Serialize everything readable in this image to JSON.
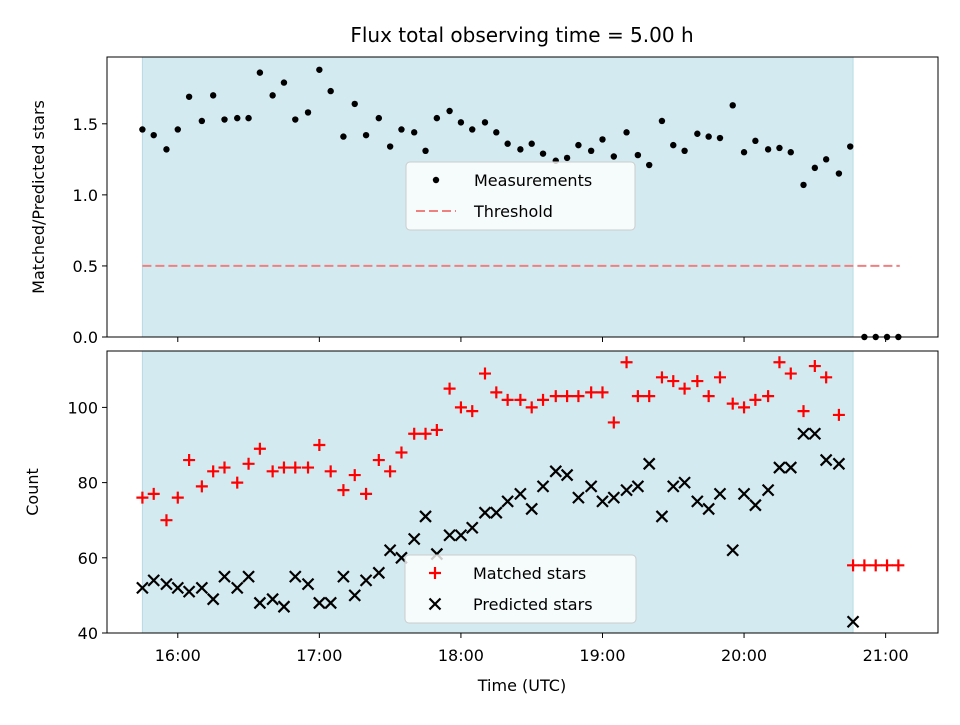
{
  "chart_data": [
    {
      "type": "scatter",
      "title": "Flux total observing time = 5.00 h",
      "ylabel": "Matched/Predicted stars",
      "xlabel": "",
      "x_unit": "hour_utc",
      "xlim": [
        15.5,
        21.37
      ],
      "ylim": [
        0,
        1.97
      ],
      "yticks": [
        0.0,
        0.5,
        1.0,
        1.5
      ],
      "ytick_labels": [
        "0.0",
        "0.5",
        "1.0",
        "1.5"
      ],
      "shaded_interval": [
        15.75,
        20.77
      ],
      "shade_color": "#d3eaf0",
      "legend_position": "center",
      "series": [
        {
          "name": "Measurements",
          "kind": "points",
          "color": "#000000",
          "x": [
            15.75,
            15.83,
            15.92,
            16.0,
            16.08,
            16.17,
            16.25,
            16.33,
            16.42,
            16.5,
            16.58,
            16.67,
            16.75,
            16.83,
            16.92,
            17.0,
            17.08,
            17.17,
            17.25,
            17.33,
            17.42,
            17.5,
            17.58,
            17.67,
            17.75,
            17.83,
            17.92,
            18.0,
            18.08,
            18.17,
            18.25,
            18.33,
            18.42,
            18.5,
            18.58,
            18.67,
            18.75,
            18.83,
            18.92,
            19.0,
            19.08,
            19.17,
            19.25,
            19.33,
            19.42,
            19.5,
            19.58,
            19.67,
            19.75,
            19.83,
            19.92,
            20.0,
            20.08,
            20.17,
            20.25,
            20.33,
            20.42,
            20.5,
            20.58,
            20.67,
            20.75,
            20.85,
            20.93,
            21.01,
            21.09
          ],
          "y": [
            1.46,
            1.42,
            1.32,
            1.46,
            1.69,
            1.52,
            1.7,
            1.53,
            1.54,
            1.54,
            1.86,
            1.7,
            1.79,
            1.53,
            1.58,
            1.88,
            1.73,
            1.41,
            1.64,
            1.42,
            1.54,
            1.34,
            1.46,
            1.44,
            1.31,
            1.54,
            1.59,
            1.51,
            1.46,
            1.51,
            1.44,
            1.36,
            1.32,
            1.36,
            1.29,
            1.24,
            1.26,
            1.35,
            1.31,
            1.39,
            1.27,
            1.44,
            1.28,
            1.21,
            1.52,
            1.35,
            1.31,
            1.43,
            1.41,
            1.4,
            1.63,
            1.3,
            1.38,
            1.32,
            1.33,
            1.3,
            1.07,
            1.19,
            1.25,
            1.15,
            1.34,
            0.0,
            0.0,
            0.0,
            0.0
          ]
        },
        {
          "name": "Threshold",
          "kind": "dashed-line",
          "color": "#f08080",
          "x": [
            15.75,
            21.1
          ],
          "y": [
            0.5,
            0.5
          ]
        }
      ]
    },
    {
      "type": "scatter",
      "title": "",
      "ylabel": "Count",
      "xlabel": "Time (UTC)",
      "x_unit": "hour_utc",
      "xlim": [
        15.5,
        21.37
      ],
      "ylim": [
        40,
        115
      ],
      "yticks": [
        40,
        60,
        80,
        100
      ],
      "xticks": [
        16,
        17,
        18,
        19,
        20,
        21
      ],
      "xtick_labels": [
        "16:00",
        "17:00",
        "18:00",
        "19:00",
        "20:00",
        "21:00"
      ],
      "shaded_interval": [
        15.75,
        20.77
      ],
      "shade_color": "#d3eaf0",
      "legend_position": "lower center",
      "series": [
        {
          "name": "Matched stars",
          "kind": "plus",
          "color": "#ff0000",
          "x": [
            15.75,
            15.83,
            15.92,
            16.0,
            16.08,
            16.17,
            16.25,
            16.33,
            16.42,
            16.5,
            16.58,
            16.67,
            16.75,
            16.83,
            16.92,
            17.0,
            17.08,
            17.17,
            17.25,
            17.33,
            17.42,
            17.5,
            17.58,
            17.67,
            17.75,
            17.83,
            17.92,
            18.0,
            18.08,
            18.17,
            18.25,
            18.33,
            18.42,
            18.5,
            18.58,
            18.67,
            18.75,
            18.83,
            18.92,
            19.0,
            19.08,
            19.17,
            19.25,
            19.33,
            19.42,
            19.5,
            19.58,
            19.67,
            19.75,
            19.83,
            19.92,
            20.0,
            20.08,
            20.17,
            20.25,
            20.33,
            20.42,
            20.5,
            20.58,
            20.67,
            20.77,
            20.85,
            20.93,
            21.01,
            21.09
          ],
          "y": [
            76,
            77,
            70,
            76,
            86,
            79,
            83,
            84,
            80,
            85,
            89,
            83,
            84,
            84,
            84,
            90,
            83,
            78,
            82,
            77,
            86,
            83,
            88,
            93,
            93,
            94,
            105,
            100,
            99,
            109,
            104,
            102,
            102,
            100,
            102,
            103,
            103,
            103,
            104,
            104,
            96,
            112,
            103,
            103,
            108,
            107,
            105,
            107,
            103,
            108,
            101,
            100,
            102,
            103,
            112,
            109,
            99,
            111,
            108,
            98,
            58,
            58,
            58,
            58,
            58
          ]
        },
        {
          "name": "Predicted stars",
          "kind": "x",
          "color": "#000000",
          "x": [
            15.75,
            15.83,
            15.92,
            16.0,
            16.08,
            16.17,
            16.25,
            16.33,
            16.42,
            16.5,
            16.58,
            16.67,
            16.75,
            16.83,
            16.92,
            17.0,
            17.08,
            17.17,
            17.25,
            17.33,
            17.42,
            17.5,
            17.58,
            17.67,
            17.75,
            17.83,
            17.92,
            18.0,
            18.08,
            18.17,
            18.25,
            18.33,
            18.42,
            18.5,
            18.58,
            18.67,
            18.75,
            18.83,
            18.92,
            19.0,
            19.08,
            19.17,
            19.25,
            19.33,
            19.42,
            19.5,
            19.58,
            19.67,
            19.75,
            19.83,
            19.92,
            20.0,
            20.08,
            20.17,
            20.25,
            20.33,
            20.42,
            20.5,
            20.58,
            20.67,
            20.77
          ],
          "y": [
            52,
            54,
            53,
            52,
            51,
            52,
            49,
            55,
            52,
            55,
            48,
            49,
            47,
            55,
            53,
            48,
            48,
            55,
            50,
            54,
            56,
            62,
            60,
            65,
            71,
            61,
            66,
            66,
            68,
            72,
            72,
            75,
            77,
            73,
            79,
            83,
            82,
            76,
            79,
            75,
            76,
            78,
            79,
            85,
            71,
            79,
            80,
            75,
            73,
            77,
            62,
            77,
            74,
            78,
            84,
            84,
            93,
            93,
            86,
            85,
            43
          ]
        }
      ]
    }
  ]
}
